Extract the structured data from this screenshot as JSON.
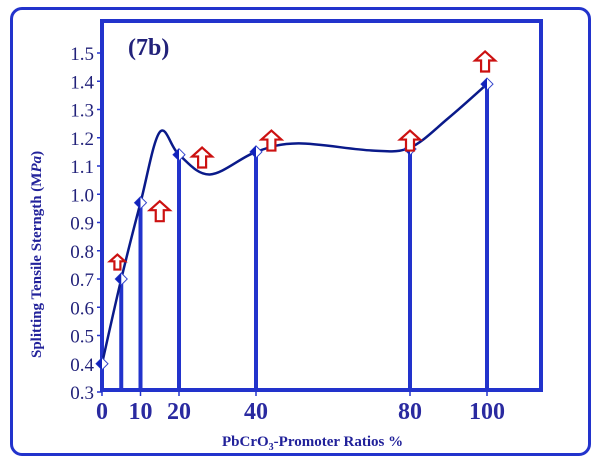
{
  "chart_data": {
    "type": "line",
    "title": "(7b)",
    "xlabel_main": "PbCrO",
    "xlabel_sub": "3",
    "xlabel_rest": "-Promoter Ratios   %",
    "ylabel_main": "Splitting Tensile Sterngth    (M",
    "ylabel_italic": "Pa",
    "ylabel_end": ")",
    "xlim": [
      0,
      114
    ],
    "ylim": [
      0.3,
      1.55
    ],
    "x_ticks": [
      0,
      10,
      20,
      40,
      80,
      100
    ],
    "x_tick_labels": [
      "0",
      "10",
      "20",
      "40",
      "80",
      "100"
    ],
    "y_ticks": [
      0.3,
      0.4,
      0.5,
      0.6,
      0.7,
      0.8,
      0.9,
      1.0,
      1.1,
      1.2,
      1.3,
      1.4,
      1.5
    ],
    "y_tick_labels": [
      "0.3",
      "0.4",
      "0.5",
      "0.6",
      "0.7",
      "0.8",
      "0.9",
      "1.0",
      "1.1",
      "1.2",
      "1.3",
      "1.4",
      "1.5"
    ],
    "series": [
      {
        "name": "Splitting Tensile Strength",
        "x": [
          0,
          5,
          10,
          20,
          40,
          80,
          100
        ],
        "y": [
          0.4,
          0.7,
          0.97,
          1.14,
          1.15,
          1.16,
          1.39
        ]
      }
    ],
    "fit_curve": {
      "x": [
        0,
        5,
        10,
        15,
        20,
        28,
        40,
        51,
        70,
        80,
        90,
        100
      ],
      "y": [
        0.4,
        0.7,
        0.97,
        1.22,
        1.14,
        1.07,
        1.15,
        1.18,
        1.155,
        1.165,
        1.27,
        1.39
      ]
    },
    "arrow_markers": {
      "x": [
        4,
        15,
        26,
        44,
        80,
        99.5
      ],
      "y": [
        0.76,
        0.94,
        1.13,
        1.19,
        1.19,
        1.47
      ]
    },
    "grid": false,
    "colors": {
      "axis": "#2233cc",
      "curve": "#0a1a8a",
      "arrow": "#cc1111",
      "text": "#22227a"
    }
  }
}
